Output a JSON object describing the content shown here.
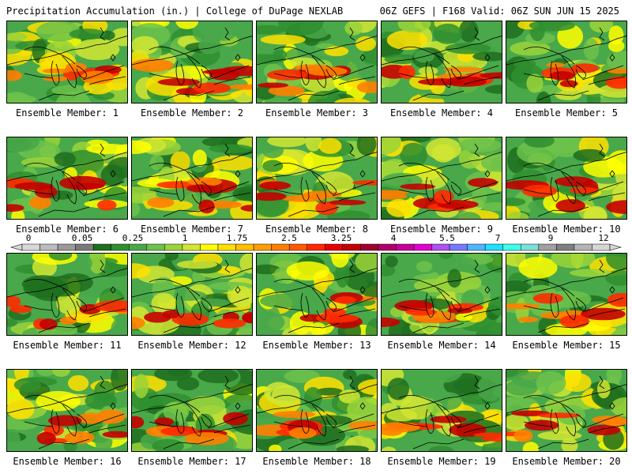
{
  "header": {
    "left": "Precipitation Accumulation (in.) | College of DuPage NEXLAB",
    "right": "06Z GEFS | F168 Valid: 06Z SUN JUN 15 2025"
  },
  "panels": [
    {
      "caption": "Ensemble Member: 1"
    },
    {
      "caption": "Ensemble Member: 2"
    },
    {
      "caption": "Ensemble Member: 3"
    },
    {
      "caption": "Ensemble Member: 4"
    },
    {
      "caption": "Ensemble Member: 5"
    },
    {
      "caption": "Ensemble Member: 6"
    },
    {
      "caption": "Ensemble Member: 7"
    },
    {
      "caption": "Ensemble Member: 8"
    },
    {
      "caption": "Ensemble Member: 9"
    },
    {
      "caption": "Ensemble Member: 10"
    },
    {
      "caption": "Ensemble Member: 11"
    },
    {
      "caption": "Ensemble Member: 12"
    },
    {
      "caption": "Ensemble Member: 13"
    },
    {
      "caption": "Ensemble Member: 14"
    },
    {
      "caption": "Ensemble Member: 15"
    },
    {
      "caption": "Ensemble Member: 16"
    },
    {
      "caption": "Ensemble Member: 17"
    },
    {
      "caption": "Ensemble Member: 18"
    },
    {
      "caption": "Ensemble Member: 19"
    },
    {
      "caption": "Ensemble Member: 20"
    }
  ],
  "colorbar": {
    "labels": [
      "0",
      "0.05",
      "0.25",
      "1",
      "1.75",
      "2.5",
      "3.25",
      "4",
      "5.5",
      "7",
      "9",
      "12"
    ],
    "colors": [
      "#d8d8d8",
      "#bcbcbc",
      "#9a9a9a",
      "#7a7a7a",
      "#1e6e1e",
      "#2f8f2f",
      "#49a84a",
      "#6cc24a",
      "#9ad43a",
      "#d2e632",
      "#ffff00",
      "#ffe000",
      "#ffc000",
      "#ffa000",
      "#ff7f00",
      "#ff5a00",
      "#ff2a00",
      "#e60000",
      "#c40000",
      "#a00030",
      "#b0006a",
      "#c8009a",
      "#e000d0",
      "#b050f0",
      "#7878ff",
      "#50b4ff",
      "#20e0ff",
      "#40ffe8",
      "#7de0d8",
      "#a0a0a0",
      "#808080",
      "#b4b4b4",
      "#d6d6d6"
    ]
  }
}
